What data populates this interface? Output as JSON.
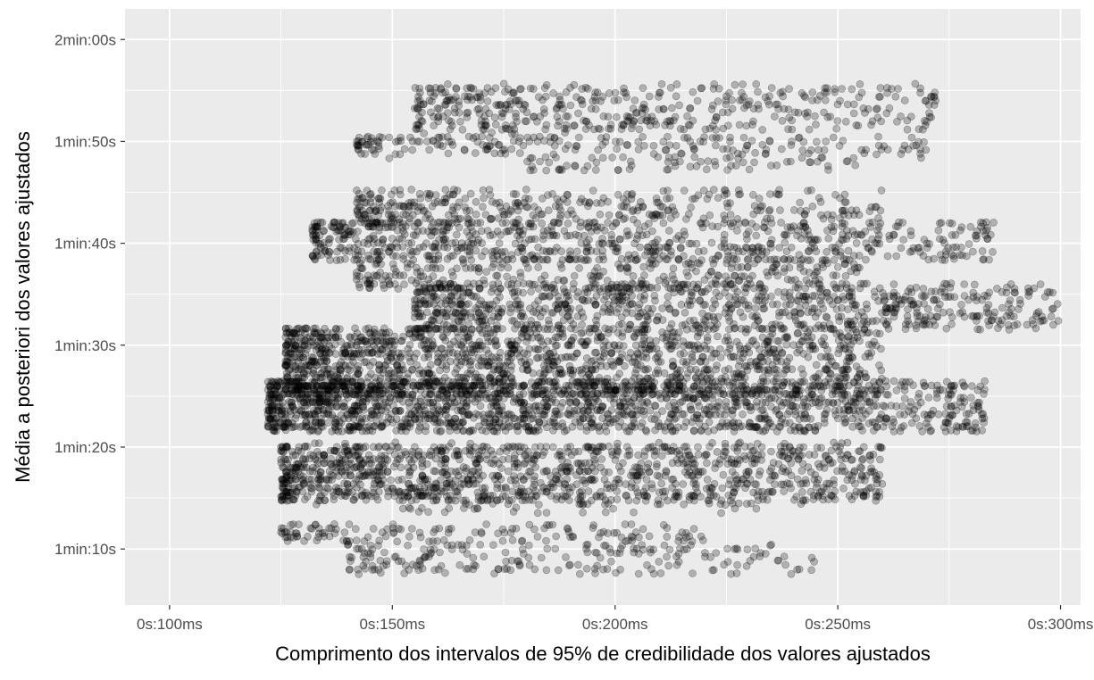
{
  "chart_data": {
    "type": "scatter",
    "title": "",
    "xlabel": "Comprimento dos intervalos de 95% de credibilidade dos valores ajustados",
    "ylabel": "Média a posteriori dos valores ajustados",
    "x_unit": "seconds",
    "y_unit": "seconds",
    "xlim": [
      0.09,
      0.3045
    ],
    "ylim": [
      64.5,
      123
    ],
    "x_ticks": [
      {
        "value": 0.1,
        "label": "0s:100ms"
      },
      {
        "value": 0.15,
        "label": "0s:150ms"
      },
      {
        "value": 0.2,
        "label": "0s:200ms"
      },
      {
        "value": 0.25,
        "label": "0s:250ms"
      },
      {
        "value": 0.3,
        "label": "0s:300ms"
      }
    ],
    "y_ticks": [
      {
        "value": 70,
        "label": "1min:10s"
      },
      {
        "value": 80,
        "label": "1min:20s"
      },
      {
        "value": 90,
        "label": "1min:30s"
      },
      {
        "value": 100,
        "label": "1min:40s"
      },
      {
        "value": 110,
        "label": "1min:50s"
      },
      {
        "value": 120,
        "label": "2min:00s"
      }
    ],
    "grid": true,
    "legend": "none",
    "point_style": {
      "fill": "#000000",
      "opacity": 0.25
    },
    "approx_point_count": 7600,
    "clusters": [
      {
        "y_range": [
          107.0,
          108.5
        ],
        "x_range": [
          0.18,
          0.255
        ],
        "density": 0.8
      },
      {
        "y_range": [
          108.5,
          110.7
        ],
        "x_range": [
          0.142,
          0.27
        ],
        "density": 1.0
      },
      {
        "y_range": [
          111.0,
          115.5
        ],
        "x_range": [
          0.155,
          0.272
        ],
        "density": 1.1
      },
      {
        "y_range": [
          102.0,
          105.3
        ],
        "x_range": [
          0.142,
          0.26
        ],
        "density": 1.2
      },
      {
        "y_range": [
          98.2,
          102.2
        ],
        "x_range": [
          0.132,
          0.285
        ],
        "density": 1.5
      },
      {
        "y_range": [
          95.5,
          98.5
        ],
        "x_range": [
          0.142,
          0.255
        ],
        "density": 1.2
      },
      {
        "y_range": [
          91.5,
          96.0
        ],
        "x_range": [
          0.155,
          0.3
        ],
        "density": 1.7
      },
      {
        "y_range": [
          85.0,
          91.8
        ],
        "x_range": [
          0.126,
          0.26
        ],
        "density": 2.2
      },
      {
        "y_range": [
          81.5,
          86.5
        ],
        "x_range": [
          0.122,
          0.283
        ],
        "density": 2.6
      },
      {
        "y_range": [
          74.5,
          80.3
        ],
        "x_range": [
          0.125,
          0.26
        ],
        "density": 2.0
      },
      {
        "y_range": [
          73.5,
          75.5
        ],
        "x_range": [
          0.152,
          0.232
        ],
        "density": 0.6
      },
      {
        "y_range": [
          70.5,
          72.5
        ],
        "x_range": [
          0.125,
          0.22
        ],
        "density": 1.0
      },
      {
        "y_range": [
          67.5,
          70.5
        ],
        "x_range": [
          0.14,
          0.245
        ],
        "density": 0.8
      }
    ]
  }
}
